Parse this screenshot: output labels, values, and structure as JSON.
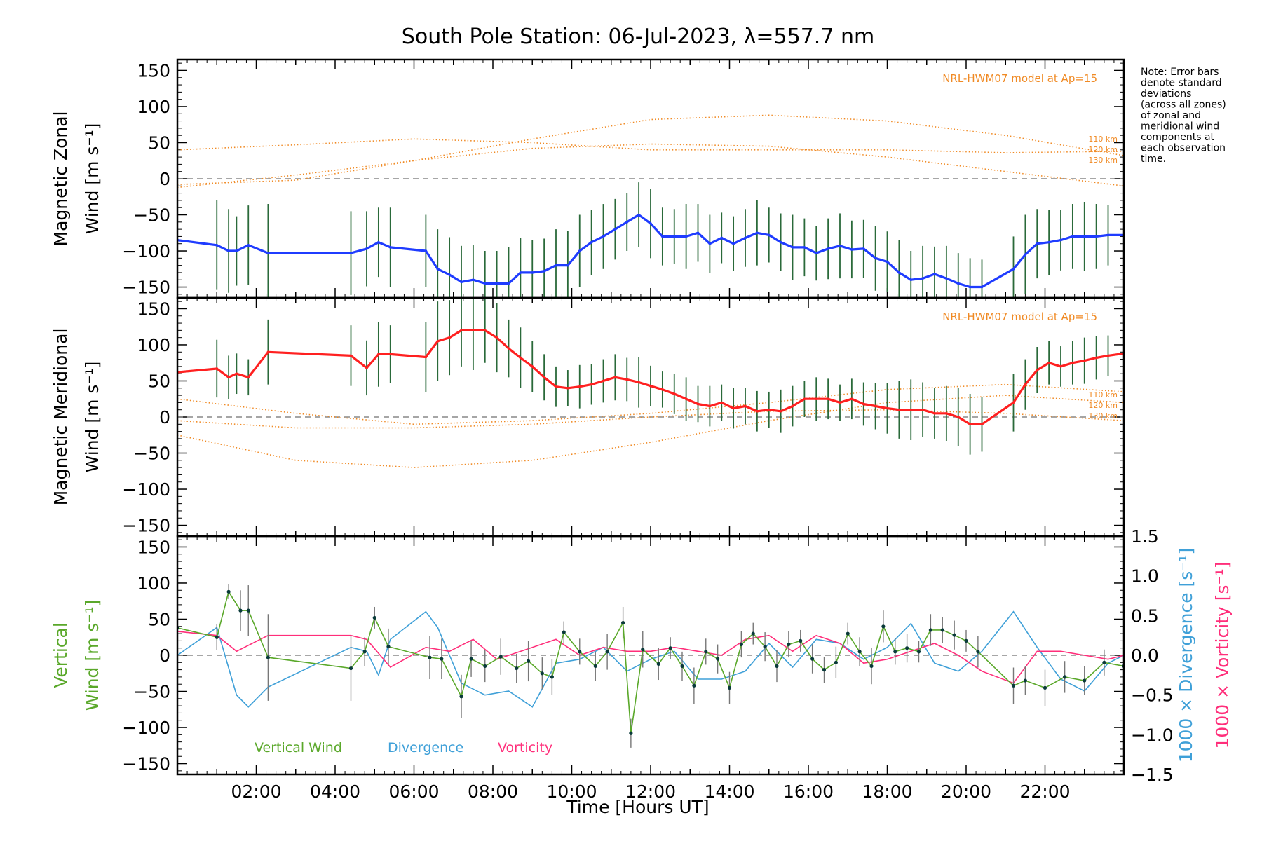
{
  "chart_data": {
    "title": "South Pole Station: 06-Jul-2023, λ=557.7 nm",
    "note": [
      "Note: Error bars",
      "denote standard",
      "deviations",
      "(across all zones)",
      "of zonal and",
      "meridional wind",
      "components at",
      "each observation",
      "time."
    ],
    "xlabel": "Time [Hours UT]",
    "xlim": [
      0,
      24
    ],
    "xtick_labels": [
      "02:00",
      "04:00",
      "06:00",
      "08:00",
      "10:00",
      "12:00",
      "14:00",
      "16:00",
      "18:00",
      "20:00",
      "22:00"
    ],
    "colors": {
      "zonal": "#1f3cff",
      "meridional": "#ff2020",
      "vertical": "#5aa82a",
      "divergence": "#3fa0d8",
      "vorticity": "#ff2e7a",
      "model": "#f08a24",
      "zero": "#888888",
      "error": "#222222"
    },
    "panels": [
      {
        "type": "line",
        "id": "zonal",
        "ylabel_line1": "Magnetic Zonal",
        "ylabel_line2": "Wind [m s⁻¹]",
        "ylim": [
          -165,
          165
        ],
        "yticks": [
          -150,
          -100,
          -50,
          0,
          50,
          100,
          150
        ],
        "model_label": "NRL-HWM07 model at Ap=15",
        "model_alts": [
          "110 km",
          "120 km",
          "130 km"
        ],
        "model": [
          {
            "x": [
              0,
              3,
              6,
              9,
              12,
              15,
              18,
              21,
              24
            ],
            "y": [
              -8,
              -2,
              25,
              55,
              82,
              88,
              80,
              60,
              32
            ]
          },
          {
            "x": [
              0,
              3,
              6,
              9,
              12,
              15,
              18,
              21,
              24
            ],
            "y": [
              40,
              47,
              55,
              50,
              40,
              40,
              40,
              36,
              38
            ]
          },
          {
            "x": [
              0,
              3,
              6,
              9,
              12,
              15,
              18,
              21,
              24
            ],
            "y": [
              -12,
              5,
              25,
              42,
              48,
              45,
              30,
              10,
              -10
            ]
          }
        ],
        "series": {
          "name": "Magnetic Zonal Wind",
          "x": [
            0,
            1.0,
            1.3,
            1.5,
            1.8,
            2.3,
            4.4,
            4.8,
            5.1,
            5.4,
            6.3,
            6.6,
            6.9,
            7.2,
            7.5,
            7.8,
            8.1,
            8.4,
            8.7,
            9.0,
            9.3,
            9.6,
            9.9,
            10.2,
            10.5,
            10.8,
            11.1,
            11.4,
            11.7,
            12.0,
            12.3,
            12.6,
            12.9,
            13.2,
            13.5,
            13.8,
            14.1,
            14.4,
            14.7,
            15.0,
            15.3,
            15.6,
            15.9,
            16.2,
            16.5,
            16.8,
            17.1,
            17.4,
            17.7,
            18.0,
            18.3,
            18.6,
            18.9,
            19.2,
            19.5,
            19.8,
            20.1,
            20.4,
            21.2,
            21.5,
            21.8,
            22.1,
            22.4,
            22.7,
            23.0,
            23.3,
            23.6,
            24.0
          ],
          "y": [
            -85,
            -92,
            -100,
            -100,
            -92,
            -103,
            -103,
            -97,
            -88,
            -95,
            -100,
            -125,
            -133,
            -143,
            -140,
            -145,
            -145,
            -145,
            -130,
            -130,
            -128,
            -120,
            -120,
            -100,
            -88,
            -80,
            -70,
            -60,
            -50,
            -62,
            -80,
            -80,
            -80,
            -75,
            -90,
            -82,
            -90,
            -82,
            -75,
            -78,
            -88,
            -95,
            -95,
            -103,
            -97,
            -93,
            -98,
            -97,
            -110,
            -115,
            -130,
            -140,
            -138,
            -132,
            -138,
            -145,
            -150,
            -150,
            -125,
            -105,
            -90,
            -88,
            -85,
            -80,
            -80,
            -80,
            -78,
            -78
          ],
          "err": [
            0,
            62,
            58,
            48,
            55,
            68,
            58,
            52,
            48,
            55,
            50,
            55,
            52,
            50,
            48,
            45,
            45,
            50,
            48,
            45,
            45,
            50,
            48,
            50,
            45,
            45,
            42,
            40,
            45,
            48,
            40,
            38,
            45,
            40,
            40,
            35,
            38,
            40,
            45,
            38,
            40,
            45,
            40,
            38,
            42,
            45,
            40,
            40,
            45,
            42,
            45,
            40,
            45,
            38,
            45,
            42,
            40,
            38,
            45,
            55,
            48,
            45,
            42,
            45,
            48,
            45,
            42,
            0
          ]
        }
      },
      {
        "type": "line",
        "id": "meridional",
        "ylabel_line1": "Magnetic Meridional",
        "ylabel_line2": "Wind [m s⁻¹]",
        "ylim": [
          -165,
          165
        ],
        "yticks": [
          -150,
          -100,
          -50,
          0,
          50,
          100,
          150
        ],
        "model_label": "NRL-HWM07 model at Ap=15",
        "model_alts": [
          "110 km",
          "120 km",
          "130 km"
        ],
        "model": [
          {
            "x": [
              0,
              3,
              6,
              9,
              12,
              15,
              18,
              21,
              24
            ],
            "y": [
              25,
              5,
              -10,
              -5,
              5,
              20,
              38,
              45,
              35
            ]
          },
          {
            "x": [
              0,
              3,
              6,
              9,
              12,
              15,
              18,
              21,
              24
            ],
            "y": [
              -25,
              -60,
              -70,
              -60,
              -35,
              -5,
              20,
              30,
              20
            ]
          },
          {
            "x": [
              0,
              3,
              6,
              9,
              12,
              15,
              18,
              21,
              24
            ],
            "y": [
              -5,
              -15,
              -15,
              -10,
              0,
              8,
              10,
              5,
              -5
            ]
          }
        ],
        "series": {
          "name": "Magnetic Meridional Wind",
          "x": [
            0,
            1.0,
            1.3,
            1.5,
            1.8,
            2.3,
            4.4,
            4.8,
            5.1,
            5.4,
            6.3,
            6.6,
            6.9,
            7.2,
            7.5,
            7.8,
            8.1,
            8.4,
            8.7,
            9.0,
            9.3,
            9.6,
            9.9,
            10.2,
            10.5,
            10.8,
            11.1,
            11.4,
            11.7,
            12.0,
            12.3,
            12.6,
            12.9,
            13.2,
            13.5,
            13.8,
            14.1,
            14.4,
            14.7,
            15.0,
            15.3,
            15.6,
            15.9,
            16.2,
            16.5,
            16.8,
            17.1,
            17.4,
            17.7,
            18.0,
            18.3,
            18.6,
            18.9,
            19.2,
            19.5,
            19.8,
            20.1,
            20.4,
            21.2,
            21.5,
            21.8,
            22.1,
            22.4,
            22.7,
            23.0,
            23.3,
            23.6,
            24.0
          ],
          "y": [
            62,
            67,
            55,
            60,
            55,
            90,
            85,
            68,
            87,
            87,
            83,
            105,
            110,
            120,
            120,
            120,
            110,
            95,
            82,
            70,
            55,
            42,
            40,
            42,
            45,
            50,
            55,
            52,
            48,
            43,
            38,
            32,
            25,
            18,
            15,
            20,
            12,
            15,
            8,
            10,
            8,
            15,
            25,
            25,
            25,
            20,
            25,
            18,
            15,
            12,
            10,
            10,
            10,
            5,
            5,
            0,
            -10,
            -10,
            20,
            45,
            65,
            75,
            70,
            75,
            78,
            82,
            85,
            88
          ],
          "err": [
            0,
            40,
            30,
            28,
            25,
            45,
            42,
            38,
            45,
            40,
            48,
            55,
            52,
            50,
            55,
            45,
            48,
            40,
            42,
            35,
            32,
            28,
            25,
            30,
            28,
            30,
            32,
            30,
            35,
            28,
            25,
            28,
            30,
            25,
            28,
            25,
            28,
            25,
            28,
            25,
            30,
            28,
            25,
            30,
            28,
            25,
            28,
            30,
            32,
            35,
            40,
            42,
            38,
            35,
            38,
            40,
            42,
            38,
            40,
            35,
            32,
            30,
            28,
            30,
            32,
            30,
            28,
            0
          ]
        }
      },
      {
        "type": "line",
        "id": "vertical",
        "ylabel_line1": "Vertical",
        "ylabel_line2": "Wind [m s⁻¹]",
        "ylim": [
          -165,
          165
        ],
        "yticks": [
          -150,
          -100,
          -50,
          0,
          50,
          100,
          150
        ],
        "right_ylim": [
          -1.5,
          1.5
        ],
        "right_ticks": [
          "1.5",
          "1.0",
          "0.5",
          "0.0",
          "−0.5",
          "−1.0",
          "−1.5"
        ],
        "right_tick_values": [
          1.5,
          1.0,
          0.5,
          0.0,
          -0.5,
          -1.0,
          -1.5
        ],
        "ylabel_right1": "1000 × Divergence [s⁻¹]",
        "ylabel_right2": "1000 × Vorticity [s⁻¹]",
        "legend": [
          "Vertical Wind",
          "Divergence",
          "Vorticity"
        ],
        "vertical": {
          "x": [
            0,
            1.0,
            1.3,
            1.6,
            1.8,
            2.3,
            4.4,
            4.75,
            5.0,
            5.35,
            6.4,
            6.7,
            7.2,
            7.45,
            7.8,
            8.2,
            8.6,
            8.9,
            9.25,
            9.5,
            9.8,
            10.2,
            10.6,
            10.9,
            11.3,
            11.5,
            11.8,
            12.2,
            12.5,
            12.8,
            13.1,
            13.4,
            13.7,
            14.0,
            14.3,
            14.6,
            14.9,
            15.2,
            15.5,
            15.8,
            16.1,
            16.4,
            16.7,
            17.0,
            17.3,
            17.6,
            17.9,
            18.2,
            18.5,
            18.8,
            19.1,
            19.4,
            19.7,
            20.0,
            20.3,
            21.2,
            21.5,
            22.0,
            22.5,
            23.0,
            23.5,
            24.0
          ],
          "y": [
            38,
            25,
            88,
            62,
            62,
            -3,
            -18,
            5,
            52,
            12,
            -3,
            -5,
            -57,
            -5,
            -15,
            -2,
            -18,
            -8,
            -25,
            -30,
            32,
            5,
            -15,
            5,
            45,
            -108,
            8,
            -12,
            10,
            -15,
            -42,
            5,
            -5,
            -45,
            15,
            30,
            12,
            -15,
            15,
            20,
            -5,
            -20,
            -10,
            30,
            5,
            -15,
            40,
            5,
            10,
            5,
            35,
            35,
            28,
            20,
            5,
            -42,
            -35,
            -45,
            -30,
            -35,
            -10,
            -15
          ],
          "err": [
            0,
            18,
            10,
            28,
            35,
            60,
            45,
            20,
            15,
            25,
            30,
            28,
            30,
            25,
            22,
            25,
            20,
            28,
            22,
            25,
            15,
            18,
            20,
            25,
            22,
            20,
            25,
            22,
            15,
            20,
            25,
            18,
            20,
            22,
            18,
            15,
            20,
            22,
            18,
            15,
            20,
            18,
            22,
            15,
            20,
            25,
            22,
            18,
            20,
            15,
            22,
            18,
            20,
            15,
            22,
            25,
            20,
            25,
            22,
            20,
            18,
            0
          ]
        },
        "divergence": {
          "x": [
            0,
            1.0,
            1.5,
            1.8,
            2.3,
            4.4,
            4.8,
            5.1,
            5.4,
            6.3,
            6.6,
            7.2,
            7.8,
            8.4,
            9.0,
            9.6,
            10.2,
            10.8,
            11.4,
            12.0,
            12.6,
            13.2,
            13.8,
            14.4,
            15.0,
            15.6,
            16.2,
            16.8,
            17.4,
            18.0,
            18.6,
            19.2,
            19.8,
            20.4,
            21.2,
            21.8,
            22.4,
            23.0,
            23.6,
            24.0
          ],
          "y": [
            0.0,
            0.35,
            -0.5,
            -0.65,
            -0.4,
            0.1,
            0.05,
            -0.25,
            0.2,
            0.55,
            0.35,
            -0.35,
            -0.5,
            -0.45,
            -0.65,
            -0.1,
            -0.05,
            0.1,
            -0.2,
            -0.05,
            0.05,
            -0.3,
            -0.3,
            -0.2,
            0.15,
            -0.15,
            0.2,
            0.15,
            -0.05,
            0.1,
            0.4,
            -0.1,
            -0.2,
            0.05,
            0.55,
            0.1,
            -0.3,
            -0.45,
            -0.1,
            0.0
          ]
        },
        "vorticity": {
          "x": [
            0,
            1.0,
            1.5,
            2.3,
            4.4,
            4.8,
            5.4,
            6.3,
            6.9,
            7.5,
            8.1,
            9.0,
            9.6,
            10.2,
            10.8,
            11.4,
            12.0,
            12.6,
            13.2,
            13.8,
            14.4,
            15.0,
            15.6,
            16.2,
            16.8,
            17.4,
            18.0,
            18.6,
            19.2,
            19.8,
            20.4,
            21.2,
            21.8,
            22.4,
            23.0,
            23.6,
            24.0
          ],
          "y": [
            0.3,
            0.25,
            0.05,
            0.25,
            0.25,
            0.2,
            -0.15,
            0.1,
            0.05,
            0.2,
            -0.05,
            0.1,
            0.2,
            0.0,
            0.1,
            0.05,
            0.05,
            0.1,
            0.05,
            0.0,
            0.2,
            0.25,
            0.05,
            0.25,
            0.15,
            -0.1,
            -0.05,
            0.05,
            0.15,
            0.0,
            -0.2,
            -0.35,
            0.05,
            0.05,
            0.0,
            -0.05,
            0.0
          ]
        }
      }
    ]
  }
}
